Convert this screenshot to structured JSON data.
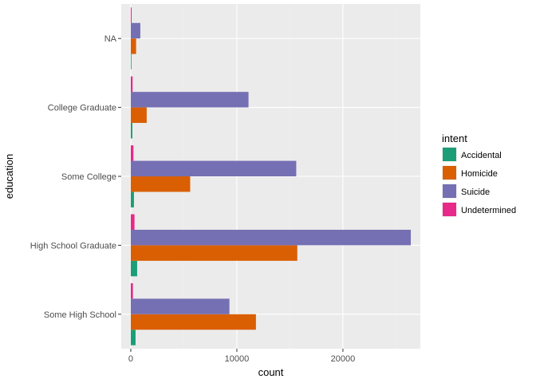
{
  "chart_data": {
    "type": "bar",
    "orientation": "horizontal",
    "title": "",
    "xlabel": "count",
    "ylabel": "education",
    "xlim": [
      -900,
      27300
    ],
    "x_ticks": [
      0,
      10000,
      20000
    ],
    "x_tick_labels": [
      "0",
      "10000",
      "20000"
    ],
    "categories": [
      "Some High School",
      "High School Graduate",
      "Some College",
      "College Graduate",
      "NA"
    ],
    "series": [
      {
        "name": "Accidental",
        "color": "#1b9e77",
        "values": [
          450,
          600,
          300,
          150,
          30
        ]
      },
      {
        "name": "Homicide",
        "color": "#d95f02",
        "values": [
          11800,
          15700,
          5600,
          1500,
          500
        ]
      },
      {
        "name": "Suicide",
        "color": "#7570b3",
        "values": [
          9300,
          26400,
          15600,
          11100,
          900
        ]
      },
      {
        "name": "Undetermined",
        "color": "#e7298a",
        "values": [
          200,
          350,
          250,
          170,
          80
        ]
      }
    ],
    "legend": {
      "title": "intent",
      "position": "right"
    },
    "grid": true,
    "panel_background": "#ebebeb"
  }
}
